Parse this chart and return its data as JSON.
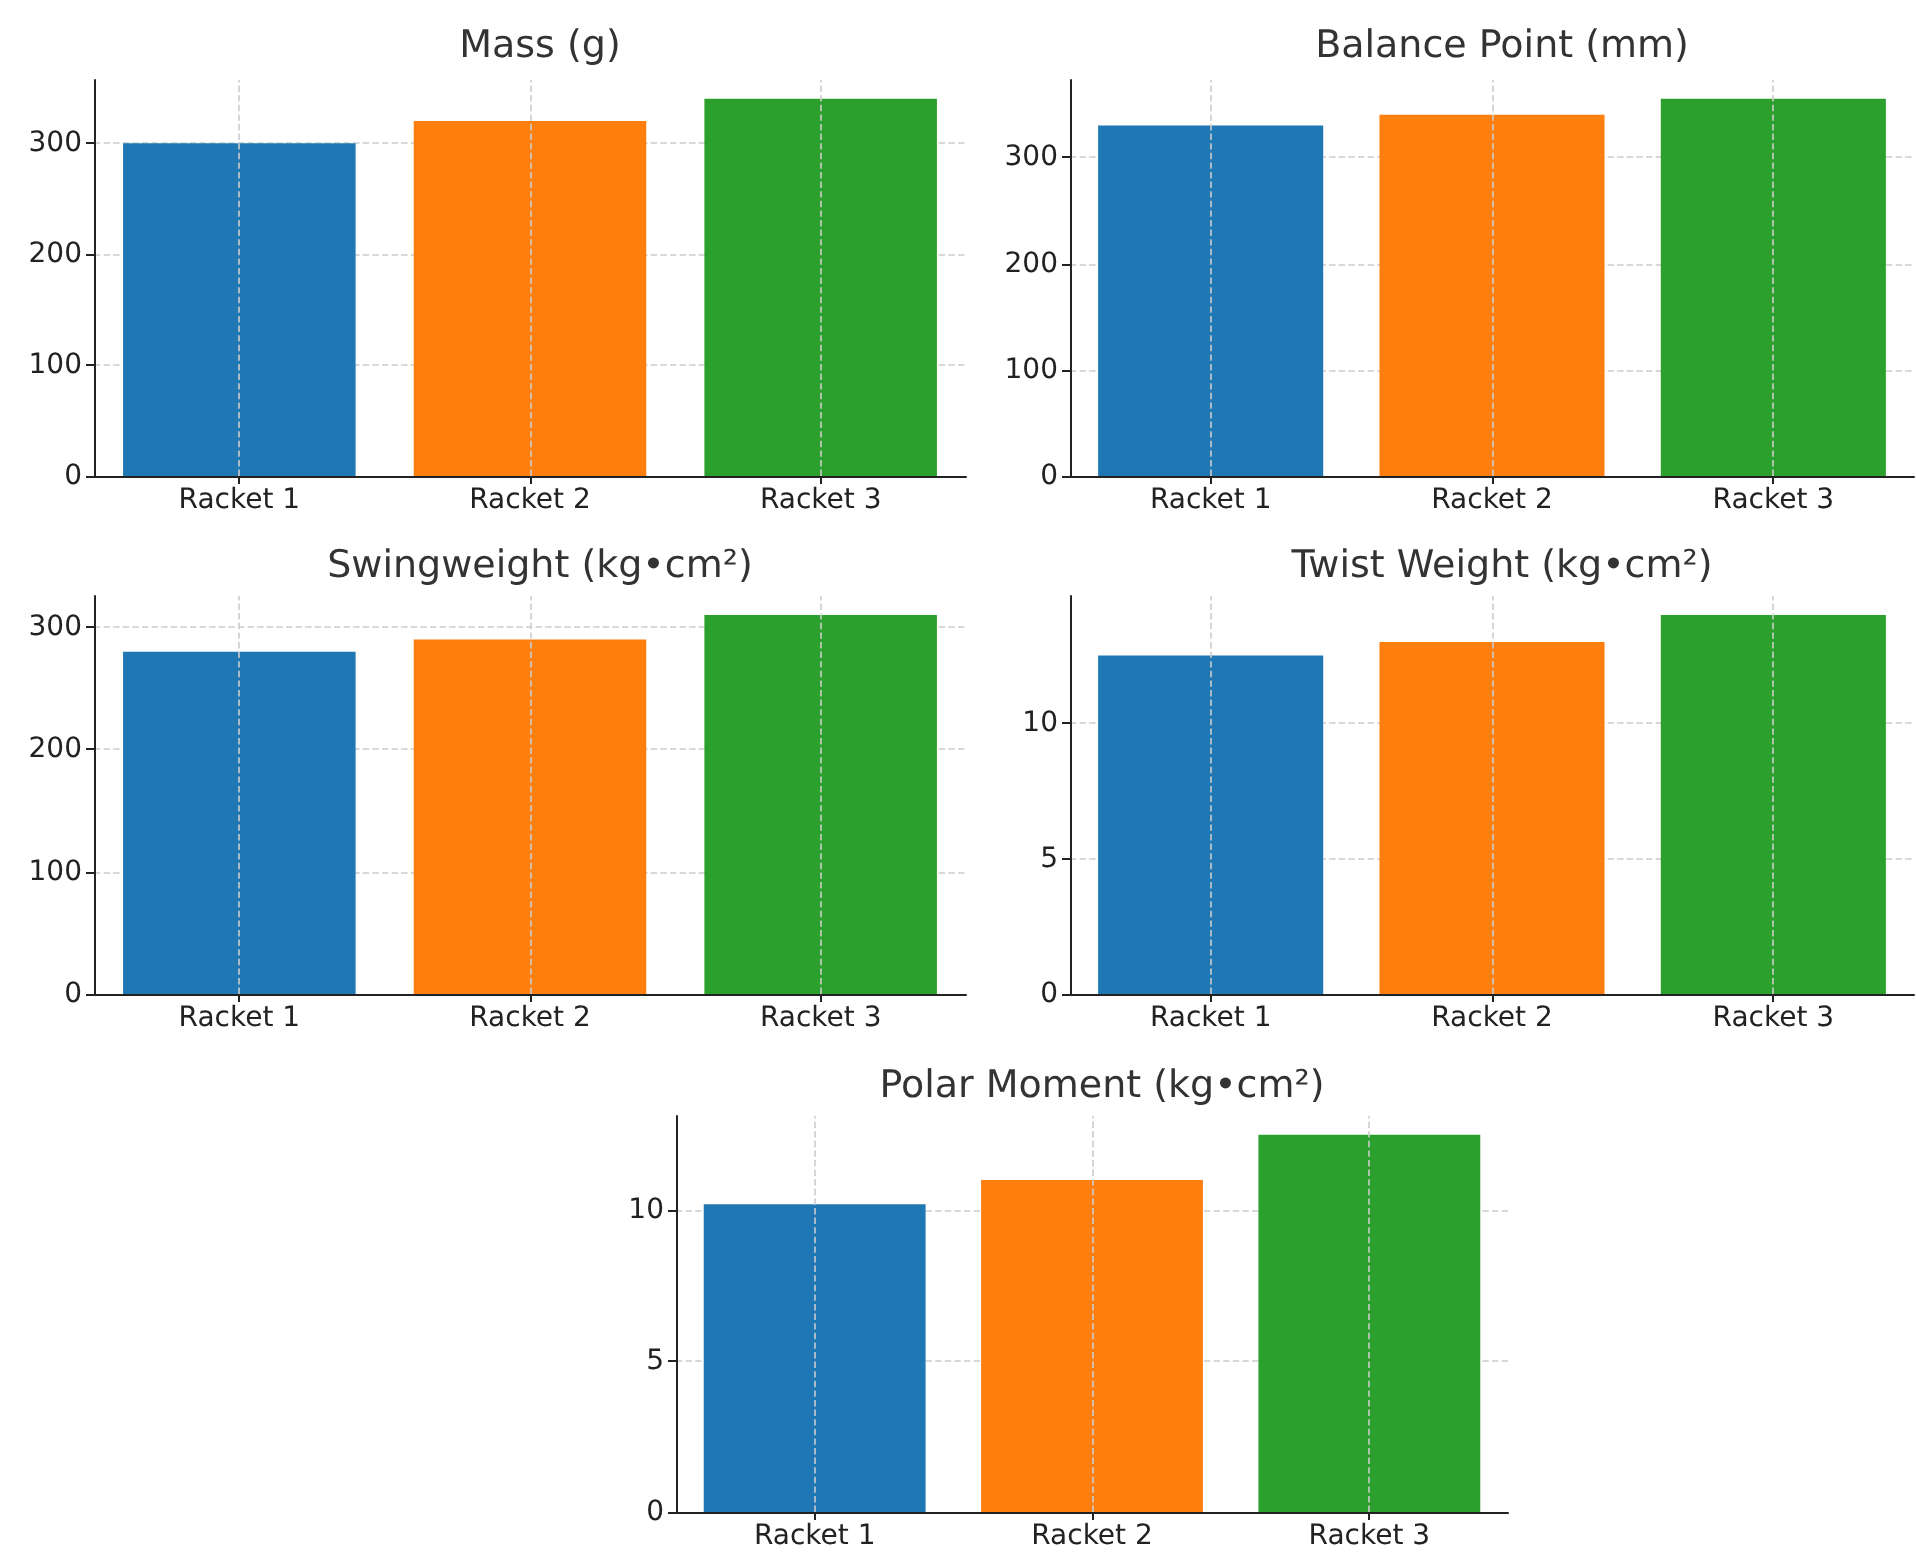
{
  "chart_data": [
    {
      "type": "bar",
      "title": "Mass (g)",
      "categories": [
        "Racket 1",
        "Racket 2",
        "Racket 3"
      ],
      "values": [
        300,
        320,
        340
      ],
      "colors": [
        "#1f77b4",
        "#ff7f0e",
        "#2ca02c"
      ],
      "ylim": [
        0,
        357
      ],
      "yticks": [
        0,
        100,
        200,
        300
      ],
      "grid": true
    },
    {
      "type": "bar",
      "title": "Balance Point (mm)",
      "categories": [
        "Racket 1",
        "Racket 2",
        "Racket 3"
      ],
      "values": [
        330,
        340,
        355
      ],
      "colors": [
        "#1f77b4",
        "#ff7f0e",
        "#2ca02c"
      ],
      "ylim": [
        0,
        372.75
      ],
      "yticks": [
        0,
        100,
        200,
        300
      ],
      "grid": true
    },
    {
      "type": "bar",
      "title": "Swingweight (kg•cm²)",
      "categories": [
        "Racket 1",
        "Racket 2",
        "Racket 3"
      ],
      "values": [
        280,
        290,
        310
      ],
      "colors": [
        "#1f77b4",
        "#ff7f0e",
        "#2ca02c"
      ],
      "ylim": [
        0,
        325.5
      ],
      "yticks": [
        0,
        100,
        200,
        300
      ],
      "grid": true
    },
    {
      "type": "bar",
      "title": "Twist Weight (kg•cm²)",
      "categories": [
        "Racket 1",
        "Racket 2",
        "Racket 3"
      ],
      "values": [
        12.5,
        13,
        14
      ],
      "colors": [
        "#1f77b4",
        "#ff7f0e",
        "#2ca02c"
      ],
      "ylim": [
        0,
        14.7
      ],
      "yticks": [
        0,
        5,
        10
      ],
      "grid": true
    },
    {
      "type": "bar",
      "title": "Polar Moment (kg•cm²)",
      "categories": [
        "Racket 1",
        "Racket 2",
        "Racket 3"
      ],
      "values": [
        10.2,
        11,
        12.5
      ],
      "colors": [
        "#1f77b4",
        "#ff7f0e",
        "#2ca02c"
      ],
      "ylim": [
        0,
        13.125
      ],
      "yticks": [
        0,
        5,
        10
      ],
      "grid": true
    }
  ]
}
